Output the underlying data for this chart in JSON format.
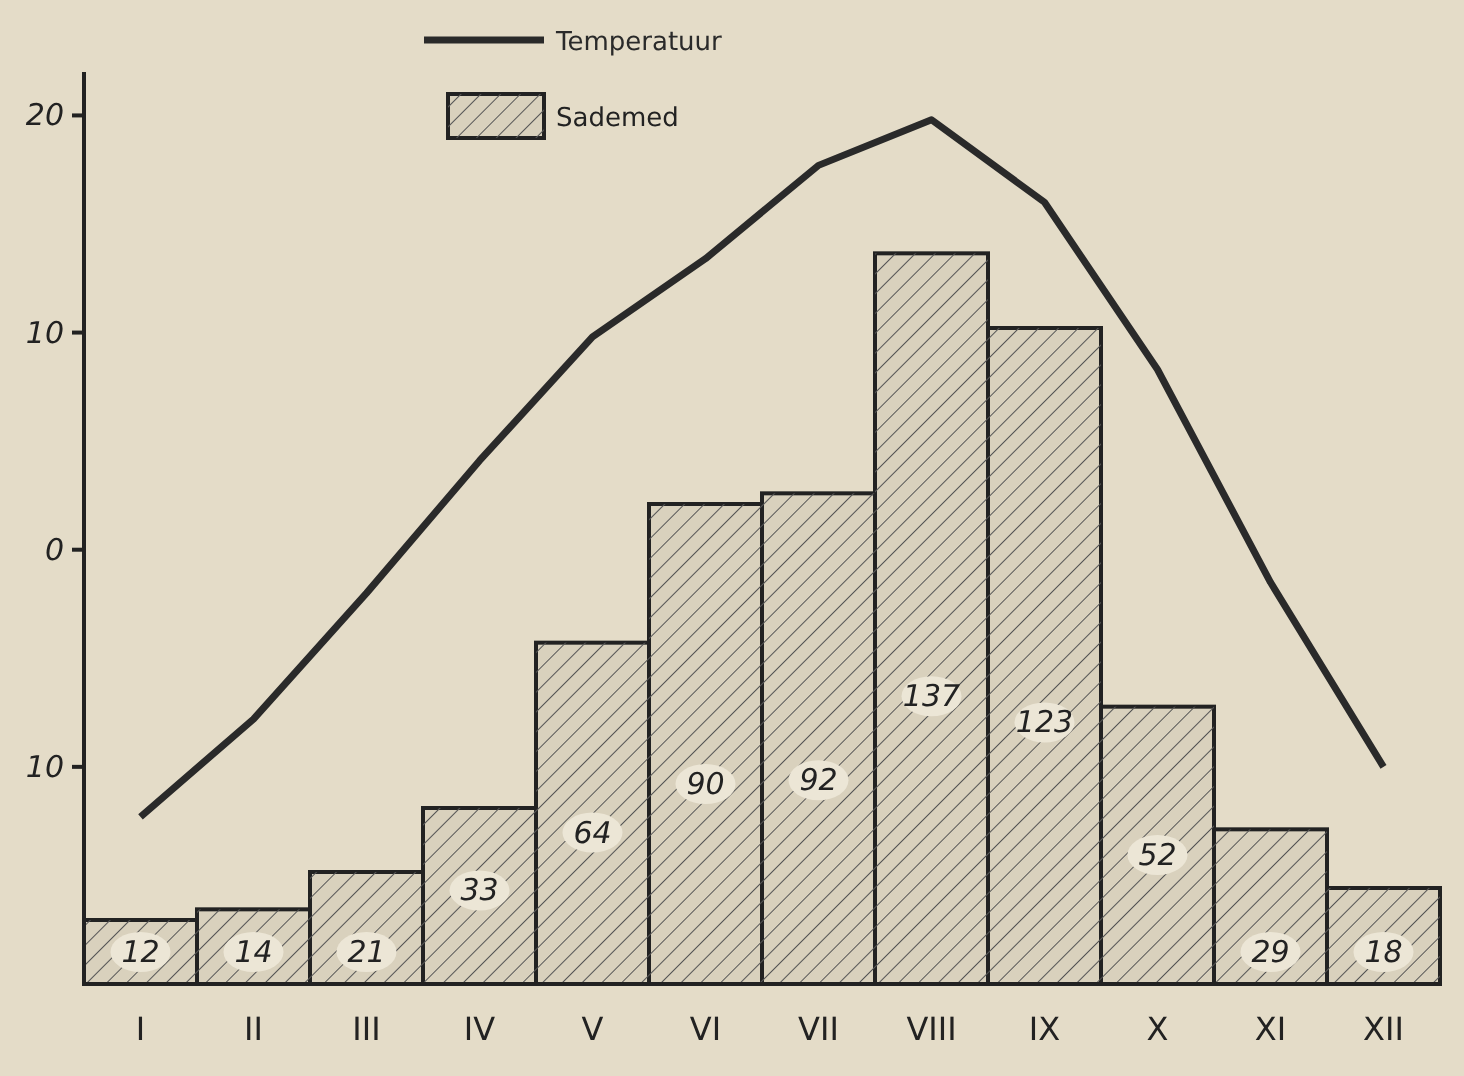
{
  "chart_data": {
    "type": "bar",
    "categories": [
      "I",
      "II",
      "III",
      "IV",
      "V",
      "VI",
      "VII",
      "VIII",
      "IX",
      "X",
      "XI",
      "XII"
    ],
    "series": [
      {
        "name": "Temperatuur",
        "type": "line",
        "color": "#2a2a2a",
        "values": [
          -12.3,
          -7.8,
          -2,
          4.1,
          9.8,
          13.4,
          17.7,
          19.8,
          16,
          8.3,
          -1.5,
          -10
        ]
      },
      {
        "name": "Sademed",
        "axis": "y2",
        "color": "#d9d1bd",
        "values": [
          12,
          14,
          21,
          33,
          64,
          90,
          92,
          137,
          123,
          52,
          29,
          18
        ],
        "value_labels": [
          "12",
          "14",
          "21",
          "33",
          "64",
          "90",
          "92",
          "137",
          "123",
          "52",
          "29",
          "18"
        ]
      }
    ],
    "ylim": [
      -20,
      22
    ],
    "yticks": [
      20,
      10,
      0,
      {
        "value": -10,
        "label": "10"
      }
    ],
    "y2lim": [
      0,
      171
    ],
    "tick_labels": "xy",
    "legend": "top",
    "grid": false
  }
}
